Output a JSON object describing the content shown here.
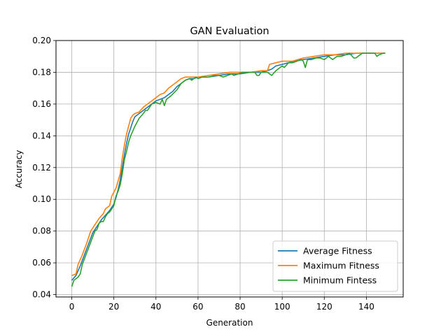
{
  "chart_data": {
    "type": "line",
    "title": "GAN Evaluation",
    "xlabel": "Generation",
    "ylabel": "Accuracy",
    "xlim": [
      -7.5,
      157.5
    ],
    "ylim": [
      0.0385,
      0.2
    ],
    "xticks": [
      0,
      20,
      40,
      60,
      80,
      100,
      120,
      140
    ],
    "yticks": [
      0.04,
      0.06,
      0.08,
      0.1,
      0.12,
      0.14,
      0.16,
      0.18,
      0.2
    ],
    "grid": true,
    "legend_position": "lower-right",
    "series": [
      {
        "name": "Average Fitness",
        "color": "#1f77b4",
        "points": [
          [
            0,
            0.049
          ],
          [
            2,
            0.052
          ],
          [
            4,
            0.058
          ],
          [
            6,
            0.065
          ],
          [
            8,
            0.072
          ],
          [
            10,
            0.079
          ],
          [
            12,
            0.083
          ],
          [
            14,
            0.087
          ],
          [
            16,
            0.09
          ],
          [
            18,
            0.093
          ],
          [
            20,
            0.097
          ],
          [
            21,
            0.101
          ],
          [
            22,
            0.106
          ],
          [
            23,
            0.112
          ],
          [
            24,
            0.12
          ],
          [
            25,
            0.128
          ],
          [
            26,
            0.135
          ],
          [
            27,
            0.141
          ],
          [
            28,
            0.145
          ],
          [
            29,
            0.149
          ],
          [
            30,
            0.152
          ],
          [
            32,
            0.154
          ],
          [
            34,
            0.156
          ],
          [
            36,
            0.158
          ],
          [
            38,
            0.16
          ],
          [
            40,
            0.162
          ],
          [
            42,
            0.163
          ],
          [
            44,
            0.164
          ],
          [
            46,
            0.166
          ],
          [
            48,
            0.168
          ],
          [
            50,
            0.171
          ],
          [
            52,
            0.173
          ],
          [
            54,
            0.175
          ],
          [
            56,
            0.176
          ],
          [
            58,
            0.176
          ],
          [
            60,
            0.177
          ],
          [
            65,
            0.177
          ],
          [
            70,
            0.178
          ],
          [
            75,
            0.179
          ],
          [
            80,
            0.179
          ],
          [
            85,
            0.18
          ],
          [
            90,
            0.18
          ],
          [
            93,
            0.181
          ],
          [
            95,
            0.182
          ],
          [
            97,
            0.184
          ],
          [
            100,
            0.185
          ],
          [
            103,
            0.186
          ],
          [
            106,
            0.187
          ],
          [
            110,
            0.188
          ],
          [
            115,
            0.189
          ],
          [
            120,
            0.19
          ],
          [
            125,
            0.191
          ],
          [
            130,
            0.191
          ],
          [
            135,
            0.192
          ],
          [
            140,
            0.192
          ],
          [
            145,
            0.192
          ],
          [
            149,
            0.192
          ]
        ]
      },
      {
        "name": "Maximum Fitness",
        "color": "#ff7f0e",
        "points": [
          [
            0,
            0.052
          ],
          [
            2,
            0.053
          ],
          [
            3,
            0.059
          ],
          [
            5,
            0.065
          ],
          [
            7,
            0.072
          ],
          [
            9,
            0.08
          ],
          [
            11,
            0.084
          ],
          [
            13,
            0.088
          ],
          [
            15,
            0.091
          ],
          [
            16,
            0.094
          ],
          [
            18,
            0.096
          ],
          [
            19,
            0.102
          ],
          [
            21,
            0.107
          ],
          [
            23,
            0.116
          ],
          [
            24,
            0.126
          ],
          [
            25,
            0.134
          ],
          [
            26,
            0.141
          ],
          [
            27,
            0.146
          ],
          [
            28,
            0.151
          ],
          [
            29,
            0.153
          ],
          [
            30,
            0.154
          ],
          [
            32,
            0.155
          ],
          [
            34,
            0.158
          ],
          [
            36,
            0.16
          ],
          [
            38,
            0.162
          ],
          [
            40,
            0.164
          ],
          [
            42,
            0.166
          ],
          [
            44,
            0.167
          ],
          [
            46,
            0.17
          ],
          [
            48,
            0.172
          ],
          [
            50,
            0.174
          ],
          [
            52,
            0.176
          ],
          [
            54,
            0.177
          ],
          [
            56,
            0.177
          ],
          [
            60,
            0.177
          ],
          [
            65,
            0.178
          ],
          [
            70,
            0.179
          ],
          [
            75,
            0.18
          ],
          [
            80,
            0.18
          ],
          [
            85,
            0.18
          ],
          [
            90,
            0.181
          ],
          [
            93,
            0.181
          ],
          [
            94,
            0.185
          ],
          [
            97,
            0.186
          ],
          [
            100,
            0.187
          ],
          [
            105,
            0.187
          ],
          [
            110,
            0.189
          ],
          [
            115,
            0.19
          ],
          [
            120,
            0.191
          ],
          [
            125,
            0.191
          ],
          [
            130,
            0.192
          ],
          [
            135,
            0.192
          ],
          [
            140,
            0.192
          ],
          [
            145,
            0.192
          ],
          [
            149,
            0.192
          ]
        ]
      },
      {
        "name": "Minimum Fintess",
        "color": "#2ca02c",
        "points": [
          [
            0,
            0.045
          ],
          [
            1,
            0.049
          ],
          [
            2,
            0.05
          ],
          [
            3,
            0.051
          ],
          [
            4,
            0.053
          ],
          [
            5,
            0.059
          ],
          [
            7,
            0.066
          ],
          [
            9,
            0.073
          ],
          [
            11,
            0.08
          ],
          [
            12,
            0.081
          ],
          [
            13,
            0.085
          ],
          [
            14,
            0.086
          ],
          [
            15,
            0.086
          ],
          [
            16,
            0.089
          ],
          [
            17,
            0.091
          ],
          [
            18,
            0.092
          ],
          [
            19,
            0.094
          ],
          [
            20,
            0.096
          ],
          [
            21,
            0.102
          ],
          [
            22,
            0.105
          ],
          [
            23,
            0.109
          ],
          [
            24,
            0.116
          ],
          [
            25,
            0.125
          ],
          [
            26,
            0.13
          ],
          [
            27,
            0.136
          ],
          [
            28,
            0.14
          ],
          [
            30,
            0.146
          ],
          [
            32,
            0.151
          ],
          [
            34,
            0.154
          ],
          [
            35,
            0.156
          ],
          [
            36,
            0.156
          ],
          [
            38,
            0.16
          ],
          [
            40,
            0.161
          ],
          [
            42,
            0.16
          ],
          [
            43,
            0.163
          ],
          [
            44,
            0.159
          ],
          [
            45,
            0.163
          ],
          [
            47,
            0.165
          ],
          [
            50,
            0.169
          ],
          [
            52,
            0.173
          ],
          [
            54,
            0.175
          ],
          [
            56,
            0.176
          ],
          [
            57,
            0.175
          ],
          [
            58,
            0.176
          ],
          [
            59,
            0.177
          ],
          [
            60,
            0.176
          ],
          [
            62,
            0.177
          ],
          [
            65,
            0.177
          ],
          [
            68,
            0.178
          ],
          [
            70,
            0.178
          ],
          [
            72,
            0.177
          ],
          [
            74,
            0.178
          ],
          [
            76,
            0.179
          ],
          [
            77,
            0.178
          ],
          [
            79,
            0.179
          ],
          [
            81,
            0.18
          ],
          [
            83,
            0.18
          ],
          [
            85,
            0.18
          ],
          [
            87,
            0.18
          ],
          [
            88,
            0.178
          ],
          [
            89,
            0.178
          ],
          [
            90,
            0.18
          ],
          [
            93,
            0.18
          ],
          [
            95,
            0.178
          ],
          [
            97,
            0.181
          ],
          [
            98,
            0.182
          ],
          [
            100,
            0.184
          ],
          [
            101,
            0.183
          ],
          [
            103,
            0.186
          ],
          [
            105,
            0.186
          ],
          [
            107,
            0.187
          ],
          [
            109,
            0.188
          ],
          [
            110,
            0.187
          ],
          [
            111,
            0.183
          ],
          [
            112,
            0.188
          ],
          [
            114,
            0.188
          ],
          [
            116,
            0.189
          ],
          [
            118,
            0.189
          ],
          [
            120,
            0.188
          ],
          [
            122,
            0.19
          ],
          [
            124,
            0.188
          ],
          [
            126,
            0.19
          ],
          [
            128,
            0.19
          ],
          [
            130,
            0.191
          ],
          [
            132,
            0.192
          ],
          [
            134,
            0.189
          ],
          [
            135,
            0.189
          ],
          [
            137,
            0.191
          ],
          [
            138,
            0.192
          ],
          [
            140,
            0.192
          ],
          [
            142,
            0.192
          ],
          [
            144,
            0.192
          ],
          [
            145,
            0.19
          ],
          [
            146,
            0.191
          ],
          [
            148,
            0.192
          ],
          [
            149,
            0.192
          ]
        ]
      }
    ]
  }
}
